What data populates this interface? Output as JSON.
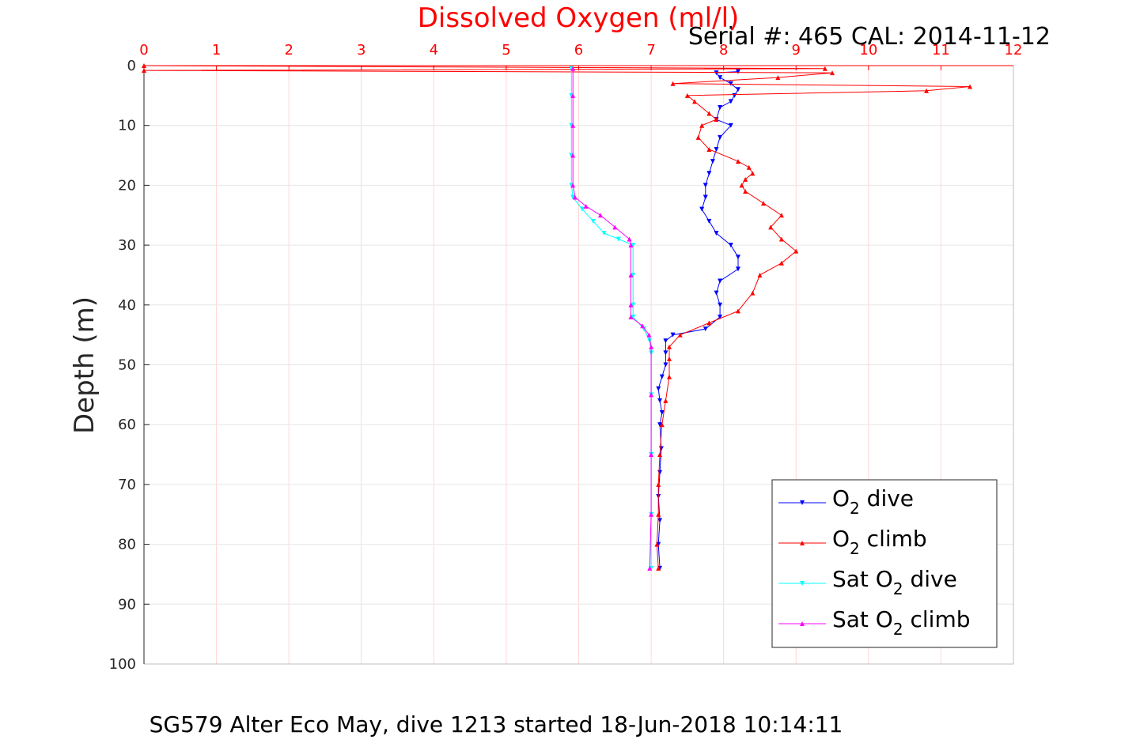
{
  "chart_data": {
    "type": "line",
    "title": "Dissolved Oxygen (ml/l)",
    "xlabel": "Dissolved Oxygen (ml/l)",
    "ylabel": "Depth (m)",
    "serial_text": "Serial #: 465  CAL: 2014-11-12",
    "footer": "SG579 Alter Eco May, dive 1213 started 18-Jun-2018 10:14:11",
    "xlim": [
      0,
      12
    ],
    "ylim": [
      0,
      100
    ],
    "y_reversed": true,
    "x_axis_position": "top",
    "x_ticks": [
      "0",
      "1",
      "2",
      "3",
      "4",
      "5",
      "6",
      "7",
      "8",
      "9",
      "10",
      "11",
      "12"
    ],
    "y_ticks": [
      "0",
      "10",
      "20",
      "30",
      "40",
      "50",
      "60",
      "70",
      "80",
      "90",
      "100"
    ],
    "grid": true,
    "legend_position": "bottom-right",
    "colors": {
      "axis_x": "#ff0000",
      "grid": "#e6e6e6",
      "xgrid": "#ffd6d6"
    },
    "series": [
      {
        "name": "O2 dive",
        "legend_main": "O",
        "legend_sub": "2",
        "legend_rest": " dive",
        "color": "#0000ff",
        "marker": "down",
        "points": [
          [
            8.2,
            1
          ],
          [
            7.9,
            1.2
          ],
          [
            7.95,
            2
          ],
          [
            8.1,
            3
          ],
          [
            8.2,
            4
          ],
          [
            8.15,
            5
          ],
          [
            8.1,
            6
          ],
          [
            7.95,
            7
          ],
          [
            7.9,
            9
          ],
          [
            8.1,
            10
          ],
          [
            7.95,
            12
          ],
          [
            7.9,
            14
          ],
          [
            7.85,
            16
          ],
          [
            7.8,
            18
          ],
          [
            7.75,
            20
          ],
          [
            7.75,
            22
          ],
          [
            7.7,
            24
          ],
          [
            7.8,
            26
          ],
          [
            7.9,
            28
          ],
          [
            8.1,
            30
          ],
          [
            8.2,
            32
          ],
          [
            8.2,
            34
          ],
          [
            7.95,
            36
          ],
          [
            7.9,
            38
          ],
          [
            7.95,
            40
          ],
          [
            7.95,
            42
          ],
          [
            7.75,
            44
          ],
          [
            7.3,
            45
          ],
          [
            7.2,
            46
          ],
          [
            7.2,
            48
          ],
          [
            7.2,
            50
          ],
          [
            7.15,
            52
          ],
          [
            7.1,
            54
          ],
          [
            7.12,
            56
          ],
          [
            7.15,
            58
          ],
          [
            7.12,
            60
          ],
          [
            7.14,
            64
          ],
          [
            7.12,
            68
          ],
          [
            7.1,
            72
          ],
          [
            7.12,
            76
          ],
          [
            7.1,
            80
          ],
          [
            7.12,
            84
          ]
        ]
      },
      {
        "name": "O2 climb",
        "legend_main": "O",
        "legend_sub": "2",
        "legend_rest": " climb",
        "color": "#ff0000",
        "marker": "up",
        "points": [
          [
            0,
            0
          ],
          [
            9.4,
            0.5
          ],
          [
            0,
            0.8
          ],
          [
            9.5,
            1.2
          ],
          [
            8.75,
            2
          ],
          [
            7.3,
            3
          ],
          [
            11.4,
            3.5
          ],
          [
            10.8,
            4.2
          ],
          [
            7.5,
            5
          ],
          [
            7.6,
            6
          ],
          [
            7.8,
            8
          ],
          [
            7.9,
            9
          ],
          [
            7.7,
            10
          ],
          [
            7.65,
            12
          ],
          [
            7.8,
            14
          ],
          [
            8.2,
            16
          ],
          [
            8.35,
            17
          ],
          [
            8.4,
            18
          ],
          [
            8.3,
            19
          ],
          [
            8.25,
            20
          ],
          [
            8.3,
            21
          ],
          [
            8.55,
            23
          ],
          [
            8.8,
            25
          ],
          [
            8.65,
            27
          ],
          [
            8.8,
            29
          ],
          [
            9.0,
            31
          ],
          [
            8.8,
            33
          ],
          [
            8.5,
            35
          ],
          [
            8.4,
            38
          ],
          [
            8.2,
            41
          ],
          [
            7.8,
            43
          ],
          [
            7.4,
            45
          ],
          [
            7.25,
            47
          ],
          [
            7.25,
            49
          ],
          [
            7.25,
            52
          ],
          [
            7.2,
            56
          ],
          [
            7.15,
            60
          ],
          [
            7.12,
            65
          ],
          [
            7.1,
            70
          ],
          [
            7.1,
            75
          ],
          [
            7.08,
            80
          ],
          [
            7.1,
            84
          ]
        ]
      },
      {
        "name": "Sat O2 dive",
        "legend_main": "Sat O",
        "legend_sub": "2",
        "legend_rest": " dive",
        "color": "#00ffff",
        "marker": "down",
        "points": [
          [
            5.9,
            0.5
          ],
          [
            5.9,
            5
          ],
          [
            5.9,
            10
          ],
          [
            5.9,
            15
          ],
          [
            5.9,
            20
          ],
          [
            5.92,
            22
          ],
          [
            6.05,
            24
          ],
          [
            6.2,
            26
          ],
          [
            6.35,
            28
          ],
          [
            6.55,
            29
          ],
          [
            6.75,
            30
          ],
          [
            6.75,
            35
          ],
          [
            6.75,
            40
          ],
          [
            6.75,
            42
          ],
          [
            6.9,
            44
          ],
          [
            6.98,
            46
          ],
          [
            7.0,
            48
          ],
          [
            7.0,
            55
          ],
          [
            7.0,
            65
          ],
          [
            7.0,
            75
          ],
          [
            7.0,
            84
          ]
        ]
      },
      {
        "name": "Sat O2 climb",
        "legend_main": "Sat O",
        "legend_sub": "2",
        "legend_rest": " climb",
        "color": "#ff00ff",
        "marker": "up",
        "points": [
          [
            5.92,
            0.5
          ],
          [
            5.92,
            5
          ],
          [
            5.92,
            10
          ],
          [
            5.92,
            15
          ],
          [
            5.92,
            20
          ],
          [
            5.95,
            22
          ],
          [
            6.1,
            23.5
          ],
          [
            6.3,
            25
          ],
          [
            6.5,
            27
          ],
          [
            6.7,
            29
          ],
          [
            6.72,
            30
          ],
          [
            6.72,
            35
          ],
          [
            6.72,
            40
          ],
          [
            6.72,
            42
          ],
          [
            6.88,
            43.5
          ],
          [
            6.97,
            45
          ],
          [
            7.0,
            47
          ],
          [
            7.0,
            55
          ],
          [
            7.0,
            65
          ],
          [
            7.0,
            75
          ],
          [
            6.98,
            84
          ]
        ]
      }
    ]
  }
}
